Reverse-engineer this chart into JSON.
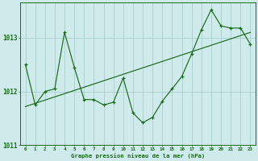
{
  "hours": [
    0,
    1,
    2,
    3,
    4,
    5,
    6,
    7,
    8,
    9,
    10,
    11,
    12,
    13,
    14,
    15,
    16,
    17,
    18,
    19,
    20,
    21,
    22,
    23
  ],
  "pressure_main": [
    1012.5,
    1011.75,
    1012.0,
    1012.05,
    1013.1,
    1012.45,
    1011.85,
    1011.85,
    1011.75,
    1011.8,
    1012.25,
    1011.6,
    1011.42,
    1011.52,
    1011.82,
    1012.05,
    1012.28,
    1012.7,
    1013.15,
    1013.52,
    1013.22,
    1013.18,
    1013.18,
    1012.88
  ],
  "pressure_trend": [
    1011.72,
    1011.78,
    1011.84,
    1011.9,
    1011.96,
    1012.02,
    1012.08,
    1012.14,
    1012.2,
    1012.26,
    1012.32,
    1012.38,
    1012.44,
    1012.5,
    1012.56,
    1012.62,
    1012.68,
    1012.74,
    1012.8,
    1012.86,
    1012.92,
    1012.98,
    1013.04,
    1013.1
  ],
  "ylim": [
    1011.0,
    1013.65
  ],
  "yticks": [
    1011,
    1012,
    1013
  ],
  "bg_color": "#ceeaea",
  "line_color": "#1a6b1a",
  "grid_color": "#aacfcf",
  "title": "Graphe pression niveau de la mer (hPa)",
  "title_color": "#1a6b1a"
}
